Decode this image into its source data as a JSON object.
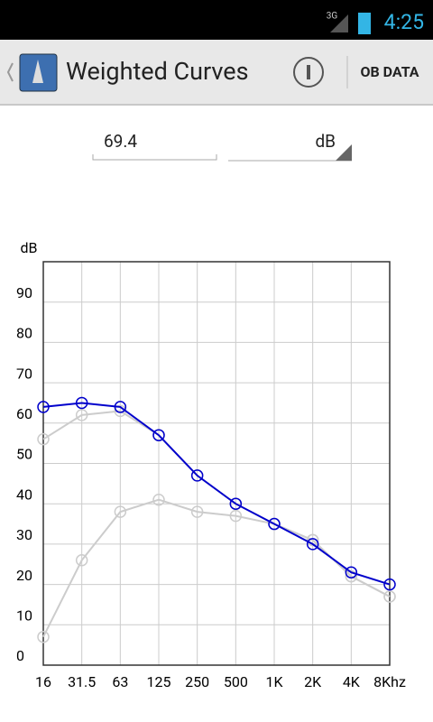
{
  "status_bar": {
    "network": "3G",
    "time": "4:25"
  },
  "action_bar": {
    "title": "Weighted Curves",
    "action": "OB DATA"
  },
  "form": {
    "level": "69.4",
    "unit": "dB"
  },
  "chart_data": {
    "type": "line",
    "y_label": "dB",
    "categories": [
      "16",
      "31.5",
      "63",
      "125",
      "250",
      "500",
      "1K",
      "2K",
      "4K",
      "8Khz"
    ],
    "series": [
      {
        "color": "#cccccc",
        "values": [
          7,
          26,
          38,
          41,
          38,
          37,
          35,
          31,
          22,
          17
        ]
      },
      {
        "color": "#cccccc",
        "values": [
          56,
          62,
          63,
          57,
          47,
          40,
          35,
          31,
          22,
          17
        ]
      },
      {
        "color": "#0000cc",
        "values": [
          64,
          65,
          64,
          57,
          47,
          40,
          35,
          30,
          23,
          20
        ]
      }
    ],
    "ylim": [
      0,
      100
    ],
    "yticks": [
      0,
      10,
      20,
      30,
      40,
      50,
      60,
      70,
      80,
      90
    ],
    "grid": true
  }
}
